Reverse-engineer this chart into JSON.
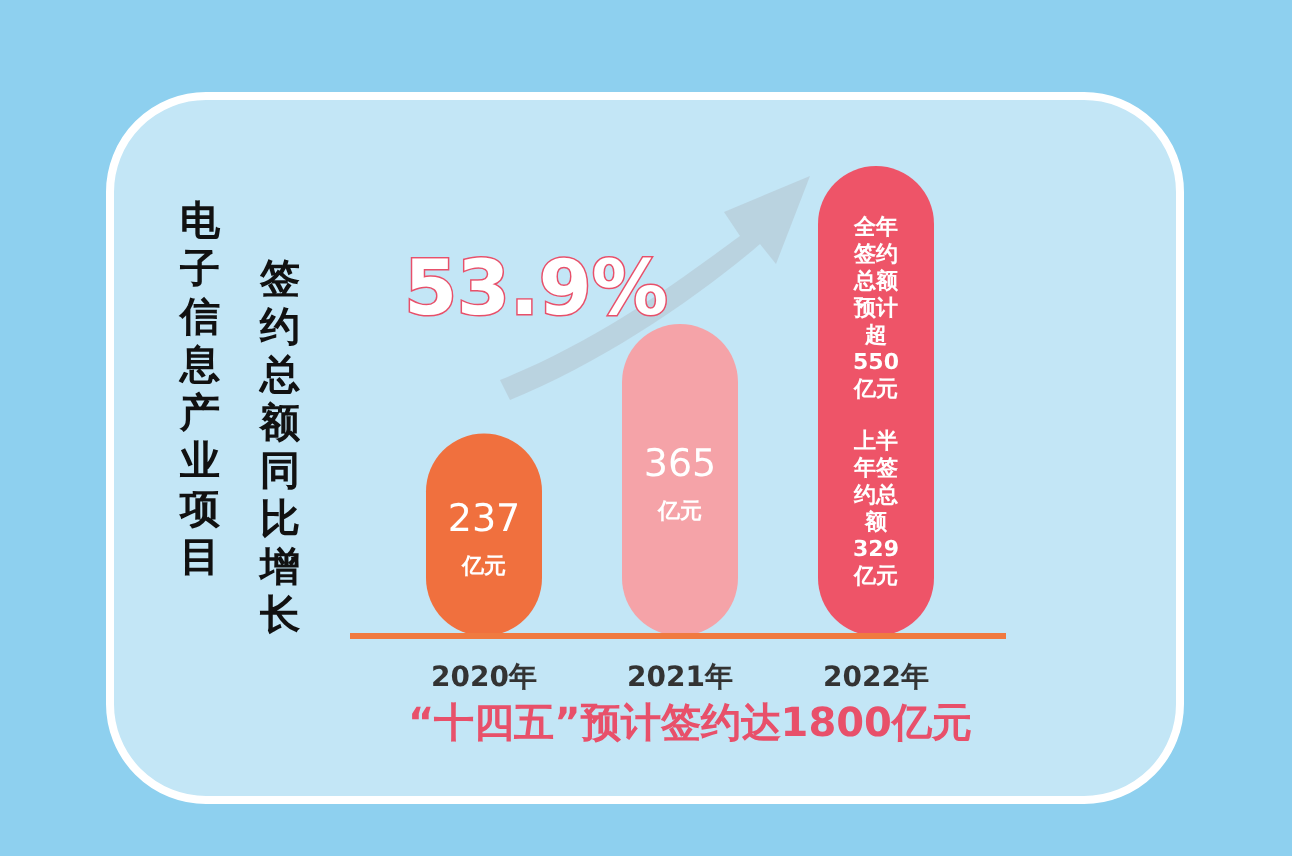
{
  "chart_data": {
    "type": "bar",
    "title": "电子信息产业项目",
    "subtitle": "签约总额同比增长",
    "categories": [
      "2020年",
      "2021年",
      "2022年"
    ],
    "values": [
      237,
      365,
      550
    ],
    "colors": [
      "#f0703e",
      "#f5a3a8",
      "#ee5468"
    ],
    "value_labels": [
      "237亿元",
      "365亿元",
      "全年签约总额预计超550亿元"
    ],
    "annotations": [
      "53.9%",
      "“十四五”预计签约达1800亿元",
      "上半年签约总额329亿元"
    ]
  }
}
